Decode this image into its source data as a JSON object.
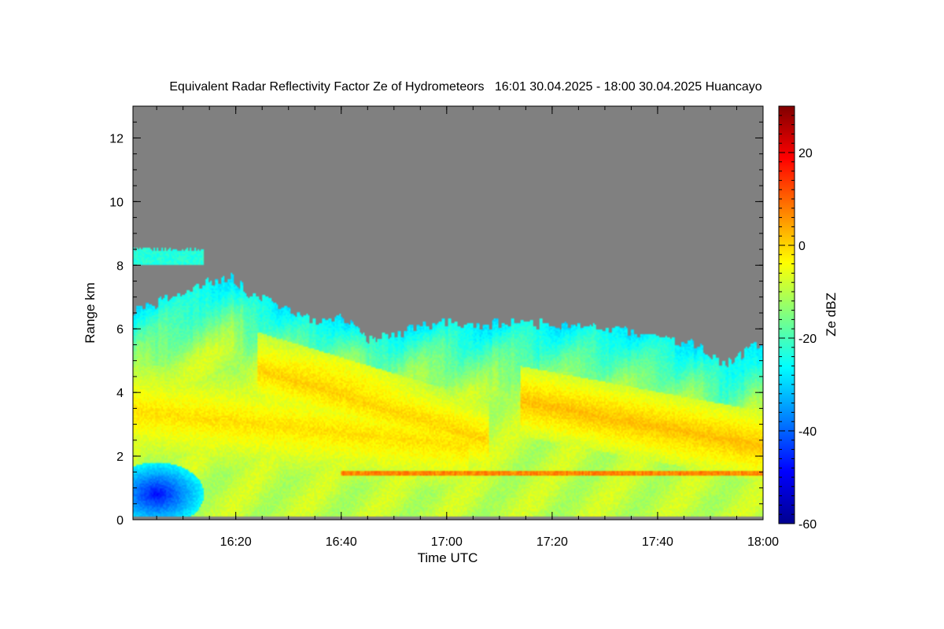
{
  "chart_data": {
    "type": "heatmap",
    "title": "Equivalent Radar Reflectivity Factor Ze of Hydrometeors   16:01 30.04.2025 - 18:00 30.04.2025 Huancayo",
    "xlabel": "Time UTC",
    "ylabel": "Range km",
    "colorbar_label": "Ze dBZ",
    "x_ticks": [
      "16:20",
      "16:40",
      "17:00",
      "17:20",
      "17:40",
      "18:00"
    ],
    "x_tick_minutes": [
      20,
      40,
      60,
      80,
      100,
      120
    ],
    "xlim_minutes": [
      0.5,
      120
    ],
    "x_minor_step_minutes": 5,
    "y_ticks": [
      0,
      2,
      4,
      6,
      8,
      10,
      12
    ],
    "ylim": [
      0,
      13
    ],
    "y_minor_step": 0.5,
    "colorbar_ticks": [
      -60,
      -40,
      -20,
      0,
      20
    ],
    "colorbar_range": [
      -60,
      30
    ],
    "colorbar_minor_step": 2,
    "no_data_color": "#808080",
    "colormap": [
      "#00008f",
      "#0000ff",
      "#0080ff",
      "#00ffff",
      "#80ff80",
      "#ffff00",
      "#ff8000",
      "#ff0000",
      "#800000"
    ],
    "echo_top_km": {
      "minutes": [
        0.5,
        2,
        4,
        6,
        9,
        12,
        15,
        17,
        18,
        19,
        20,
        22,
        25,
        28,
        31,
        33,
        36,
        38,
        40,
        42,
        44,
        45,
        46,
        47,
        49,
        50,
        52,
        54,
        57,
        60,
        63,
        66,
        70,
        75,
        80,
        85,
        88,
        92,
        95,
        97,
        100,
        103,
        106,
        108,
        110,
        112,
        114,
        116,
        118,
        120
      ],
      "top": [
        6.5,
        6.7,
        6.6,
        6.9,
        7.1,
        7.25,
        7.45,
        7.5,
        7.6,
        7.7,
        7.5,
        7.15,
        6.95,
        6.75,
        6.55,
        6.35,
        6.2,
        6.25,
        6.35,
        6.2,
        6.0,
        5.7,
        5.55,
        5.75,
        5.8,
        5.9,
        5.9,
        6.0,
        6.1,
        6.2,
        6.15,
        6.1,
        6.15,
        6.2,
        6.15,
        6.1,
        6.0,
        6.0,
        5.9,
        5.8,
        5.75,
        5.6,
        5.5,
        5.45,
        5.2,
        5.0,
        4.9,
        5.2,
        5.4,
        5.5
      ]
    },
    "upper_layer_km": {
      "minutes": [
        0.5,
        14
      ],
      "bottom": 8.0,
      "top": 8.5
    },
    "bright_band_km": {
      "minutes": [
        40,
        120
      ],
      "height": 1.45
    },
    "features": [
      {
        "shape": "band",
        "t1": 0.5,
        "h1": 3.4,
        "t2": 60,
        "h2": 2.4,
        "width": 1.5,
        "dbz": -1
      },
      {
        "shape": "band",
        "t1": 28,
        "h1": 4.5,
        "t2": 64,
        "h2": 2.7,
        "width": 1.2,
        "dbz": 0
      },
      {
        "shape": "band",
        "t1": 78,
        "h1": 3.6,
        "t2": 120,
        "h2": 2.3,
        "width": 1.1,
        "dbz": 2
      },
      {
        "shape": "blob",
        "t": 5,
        "h": 0.8,
        "rt": 9,
        "rh": 1.0,
        "dbz": -48
      },
      {
        "shape": "blob",
        "t": 45,
        "h": 5.0,
        "rt": 20,
        "rh": 1.2,
        "dbz": -15
      }
    ]
  }
}
